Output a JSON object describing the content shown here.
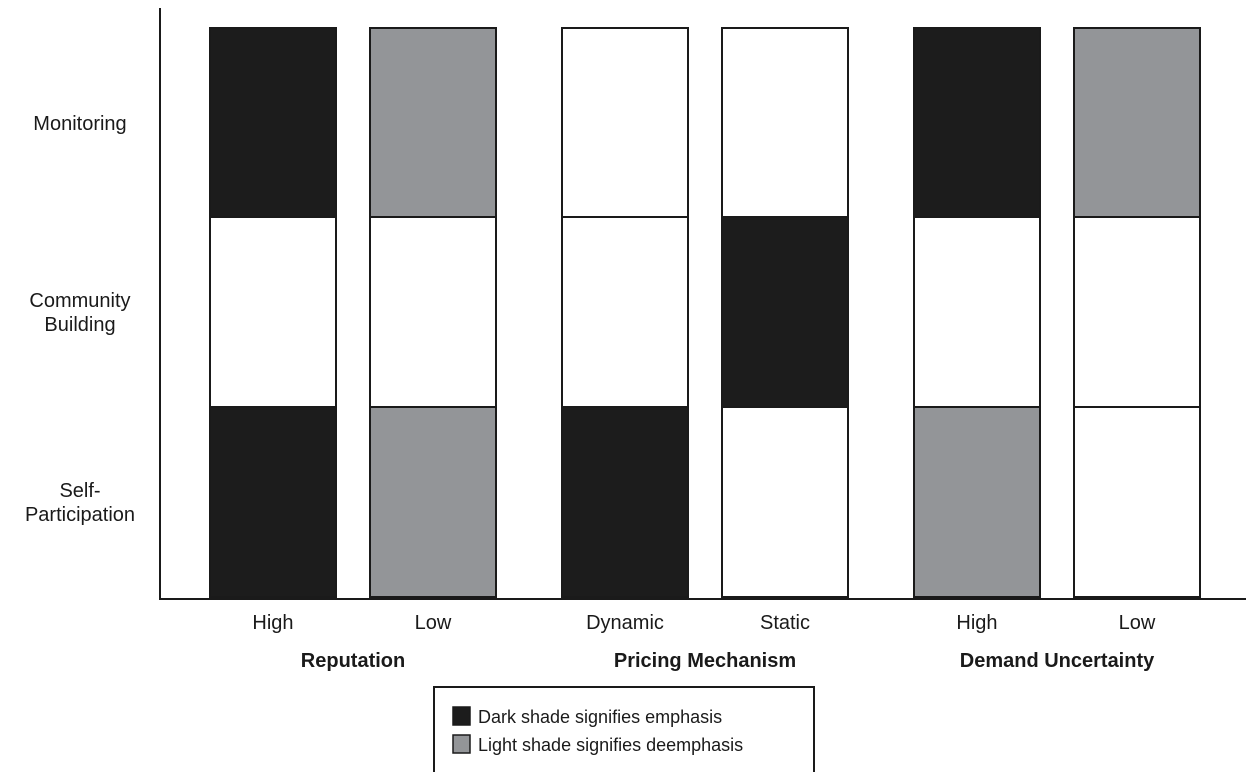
{
  "chart_data": {
    "type": "heatmap",
    "title": "",
    "rows": [
      "Monitoring",
      "Community Building",
      "Self-Participation"
    ],
    "row_label_lines": [
      [
        "Monitoring"
      ],
      [
        "Community",
        "Building"
      ],
      [
        "Self-",
        "Participation"
      ]
    ],
    "columns": [
      {
        "label": "High",
        "group": "Reputation"
      },
      {
        "label": "Low",
        "group": "Reputation"
      },
      {
        "label": "Dynamic",
        "group": "Pricing Mechanism"
      },
      {
        "label": "Static",
        "group": "Pricing Mechanism"
      },
      {
        "label": "High",
        "group": "Demand Uncertainty"
      },
      {
        "label": "Low",
        "group": "Demand Uncertainty"
      }
    ],
    "groups": [
      "Reputation",
      "Pricing Mechanism",
      "Demand Uncertainty"
    ],
    "values": [
      [
        "dark",
        "light",
        "none",
        "none",
        "dark",
        "light"
      ],
      [
        "none",
        "none",
        "none",
        "dark",
        "none",
        "none"
      ],
      [
        "dark",
        "light",
        "dark",
        "none",
        "light",
        "none"
      ]
    ],
    "shade_colors": {
      "dark": "#1c1c1c",
      "light": "#939598",
      "none": "#ffffff"
    },
    "legend": {
      "position": "bottom-center",
      "items": [
        {
          "shade": "dark",
          "text": "Dark shade signifies emphasis"
        },
        {
          "shade": "light",
          "text": "Light shade signifies deemphasis"
        }
      ]
    }
  }
}
